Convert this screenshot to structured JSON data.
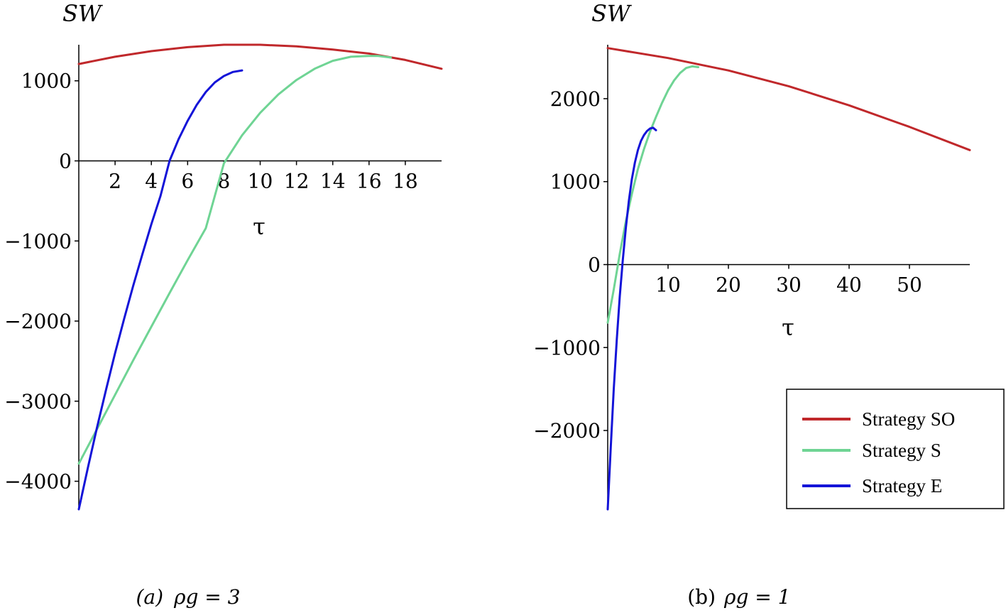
{
  "chart_data": [
    {
      "type": "line",
      "panel": "a",
      "caption_label": "(a)",
      "caption_param": "ρg = 3",
      "ylabel": "SW",
      "xlabel": "τ",
      "xlim": [
        0,
        20
      ],
      "ylim": [
        -4350,
        1450
      ],
      "xticks": [
        "2",
        "4",
        "6",
        "8",
        "10",
        "12",
        "14",
        "16",
        "18"
      ],
      "yticks": [
        "1000",
        "0",
        "-1000",
        "-2000",
        "-3000",
        "-4000"
      ],
      "grid": false,
      "series": [
        {
          "key": "so",
          "color": "#c0282b",
          "x": [
            0,
            2,
            4,
            6,
            8,
            10,
            12,
            14,
            16,
            18,
            20
          ],
          "y": [
            1210,
            1300,
            1370,
            1420,
            1450,
            1450,
            1430,
            1390,
            1340,
            1260,
            1150
          ]
        },
        {
          "key": "s",
          "color": "#6fd494",
          "x": [
            0,
            1,
            2,
            3,
            4,
            5,
            6,
            7,
            8,
            9,
            10,
            11,
            12,
            13,
            14,
            15,
            16,
            16.5,
            17.2
          ],
          "y": [
            -3780,
            -3350,
            -2920,
            -2490,
            -2070,
            -1650,
            -1240,
            -840,
            -30,
            320,
            600,
            830,
            1010,
            1150,
            1250,
            1300,
            1310,
            1310,
            1290
          ]
        },
        {
          "key": "e",
          "color": "#1414d8",
          "x": [
            0,
            0.5,
            1,
            1.5,
            2,
            2.5,
            3,
            3.5,
            4,
            4.5,
            5,
            5.5,
            6,
            6.5,
            7,
            7.5,
            8,
            8.5,
            9
          ],
          "y": [
            -4350,
            -3830,
            -3330,
            -2860,
            -2400,
            -1970,
            -1560,
            -1170,
            -790,
            -440,
            0,
            270,
            500,
            700,
            860,
            980,
            1060,
            1110,
            1130
          ]
        }
      ]
    },
    {
      "type": "line",
      "panel": "b",
      "caption_label": "(b)",
      "caption_param": "ρg = 1",
      "ylabel": "SW",
      "xlabel": "τ",
      "xlim": [
        0,
        60
      ],
      "ylim": [
        -2950,
        2650
      ],
      "xticks": [
        "10",
        "20",
        "30",
        "40",
        "50"
      ],
      "yticks": [
        "2000",
        "1000",
        "0",
        "-1000",
        "-2000"
      ],
      "grid": false,
      "legend_position": "bottom-right",
      "series": [
        {
          "key": "so",
          "name": "Strategy SO",
          "color": "#c0282b",
          "x": [
            0,
            10,
            20,
            30,
            40,
            50,
            60
          ],
          "y": [
            2610,
            2490,
            2340,
            2150,
            1920,
            1660,
            1380
          ]
        },
        {
          "key": "s",
          "name": "Strategy S",
          "color": "#6fd494",
          "x": [
            0,
            1,
            2,
            3,
            4,
            5,
            6,
            7,
            8,
            9,
            10,
            11,
            12,
            13,
            14,
            15
          ],
          "y": [
            -700,
            -300,
            130,
            520,
            850,
            1150,
            1390,
            1600,
            1780,
            1950,
            2100,
            2220,
            2310,
            2370,
            2390,
            2380
          ]
        },
        {
          "key": "e",
          "name": "Strategy E",
          "color": "#1414d8",
          "x": [
            0,
            0.5,
            1,
            1.5,
            2,
            2.5,
            3,
            3.5,
            4,
            4.5,
            5,
            5.5,
            6,
            6.5,
            7,
            7.5,
            8
          ],
          "y": [
            -2950,
            -2200,
            -1500,
            -900,
            -380,
            60,
            440,
            770,
            1030,
            1230,
            1380,
            1490,
            1560,
            1610,
            1640,
            1650,
            1620
          ]
        }
      ]
    }
  ]
}
